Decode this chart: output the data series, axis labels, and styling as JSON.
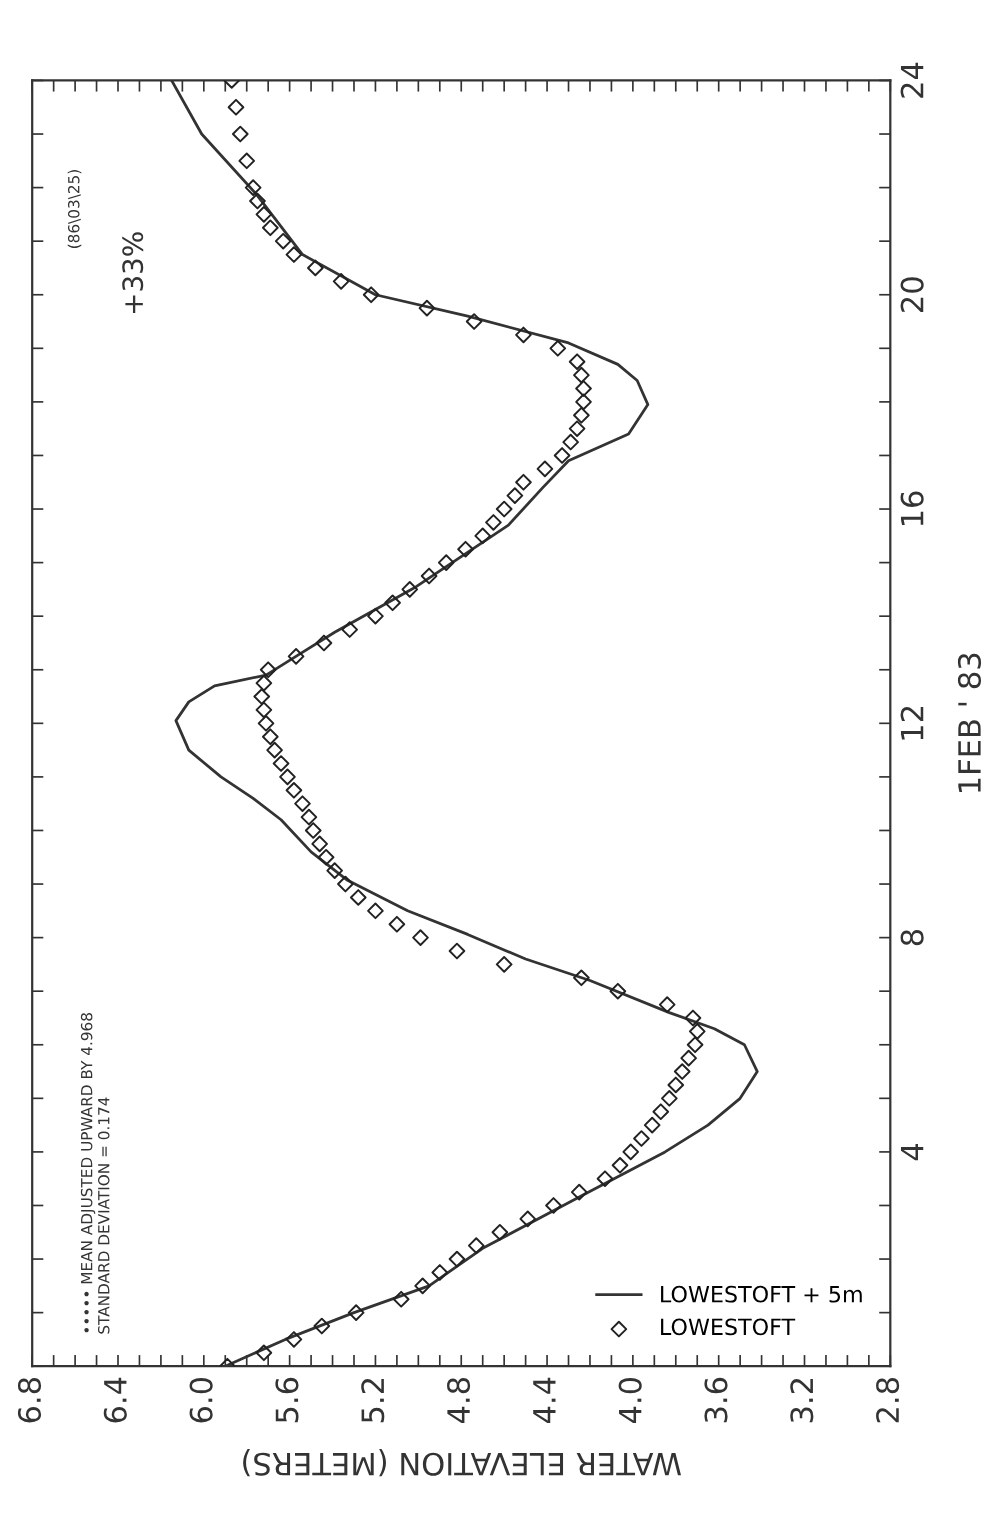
{
  "chart_data": {
    "type": "line",
    "ylabel": "1FEB ' 83",
    "xlabel": "WATER ELEVATION (METERS)",
    "ylim": [
      0,
      24
    ],
    "xlim": [
      6.8,
      2.8
    ],
    "yticks": [
      {
        "value": 0,
        "label": null
      },
      {
        "value": 1,
        "label": null
      },
      {
        "value": 2,
        "label": null
      },
      {
        "value": 3,
        "label": null
      },
      4,
      {
        "value": 5,
        "label": null
      },
      {
        "value": 6,
        "label": null
      },
      {
        "value": 7,
        "label": null
      },
      8,
      {
        "value": 9,
        "label": null
      },
      {
        "value": 10,
        "label": null
      },
      {
        "value": 11,
        "label": null
      },
      12,
      {
        "value": 13,
        "label": null
      },
      {
        "value": 14,
        "label": null
      },
      {
        "value": 15,
        "label": null
      },
      16,
      {
        "value": 17,
        "label": null
      },
      {
        "value": 18,
        "label": null
      },
      {
        "value": 19,
        "label": null
      },
      20,
      {
        "value": 21,
        "label": null
      },
      {
        "value": 22,
        "label": null
      },
      {
        "value": 23,
        "label": null
      },
      24
    ],
    "xticks": [
      2.8,
      {
        "value": 2.9,
        "label": null
      },
      {
        "value": 3.0,
        "label": null
      },
      {
        "value": 3.1,
        "label": null
      },
      3.2,
      {
        "value": 3.3,
        "label": null
      },
      {
        "value": 3.4,
        "label": null
      },
      {
        "value": 3.5,
        "label": null
      },
      3.6,
      {
        "value": 3.7,
        "label": null
      },
      {
        "value": 3.8,
        "label": null
      },
      {
        "value": 3.9,
        "label": null
      },
      {
        "value": 4.0,
        "label": "4.0"
      },
      {
        "value": 4.1,
        "label": null
      },
      {
        "value": 4.2,
        "label": null
      },
      {
        "value": 4.3,
        "label": null
      },
      4.4,
      {
        "value": 4.5,
        "label": null
      },
      {
        "value": 4.6,
        "label": null
      },
      {
        "value": 4.7,
        "label": null
      },
      4.8,
      {
        "value": 4.9,
        "label": null
      },
      {
        "value": 5.0,
        "label": null
      },
      {
        "value": 5.1,
        "label": null
      },
      5.2,
      {
        "value": 5.3,
        "label": null
      },
      {
        "value": 5.4,
        "label": null
      },
      {
        "value": 5.5,
        "label": null
      },
      5.6,
      {
        "value": 5.7,
        "label": null
      },
      {
        "value": 5.8,
        "label": null
      },
      {
        "value": 5.9,
        "label": null
      },
      {
        "value": 6.0,
        "label": "6.0"
      },
      {
        "value": 6.1,
        "label": null
      },
      {
        "value": 6.2,
        "label": null
      },
      {
        "value": 6.3,
        "label": null
      },
      6.4,
      {
        "value": 6.5,
        "label": null
      },
      {
        "value": 6.6,
        "label": null
      },
      {
        "value": 6.7,
        "label": null
      },
      6.8
    ],
    "grid": false,
    "legend": "bottom right",
    "annotations": [
      "+33%",
      "(86\\03\\25)",
      "••••• MEAN ADJUSTED UPWARD BY 4.968\nSTANDARD DEVIATION = 0.174"
    ],
    "series": [
      {
        "name": "LOWESTOFT + 5m",
        "color": "#333333",
        "marker": "none",
        "line_style": "solid",
        "values": [
          0,
          0.5,
          1.0,
          1.5,
          2.2,
          3.2,
          4.0,
          4.5,
          5.0,
          5.5,
          6.0,
          6.3,
          6.6,
          7.2,
          7.6,
          8.06,
          8.5,
          9.07,
          9.6,
          10.2,
          10.6,
          11.0,
          11.5,
          12.05,
          12.4,
          12.7,
          12.9,
          13.3,
          13.7,
          14.55,
          15.7,
          16.4,
          16.9,
          17.4,
          17.95,
          18.4,
          18.7,
          19.1,
          19.6,
          20.0,
          20.75,
          21.9,
          23.0,
          24.0
        ],
        "x": [
          5.9,
          5.62,
          5.3,
          4.95,
          4.7,
          4.23,
          3.85,
          3.65,
          3.5,
          3.42,
          3.48,
          3.62,
          3.83,
          4.2,
          4.5,
          4.77,
          5.05,
          5.33,
          5.5,
          5.64,
          5.77,
          5.92,
          6.07,
          6.13,
          6.07,
          5.95,
          5.71,
          5.55,
          5.39,
          5.01,
          4.58,
          4.42,
          4.3,
          4.02,
          3.93,
          3.98,
          4.07,
          4.3,
          4.77,
          5.2,
          5.54,
          5.76,
          6.01,
          6.15
        ]
      },
      {
        "name": "LOWESTOFT",
        "type": "scatter",
        "color": "#222222",
        "marker": "diamond",
        "values": [
          0,
          0.25,
          0.5,
          0.75,
          1.0,
          1.25,
          1.5,
          1.75,
          2.0,
          2.25,
          2.5,
          2.75,
          3.0,
          3.25,
          3.5,
          3.75,
          4.0,
          4.25,
          4.5,
          4.75,
          5.0,
          5.25,
          5.5,
          5.75,
          6.0,
          6.25,
          6.5,
          6.75,
          7.0,
          7.25,
          7.5,
          7.75,
          8.0,
          8.25,
          8.5,
          8.75,
          9.0,
          9.25,
          9.5,
          9.75,
          10.0,
          10.25,
          10.5,
          10.75,
          11.0,
          11.25,
          11.5,
          11.75,
          12.0,
          12.25,
          12.5,
          12.75,
          13.0,
          13.25,
          13.5,
          13.75,
          14.0,
          14.25,
          14.5,
          14.75,
          15.0,
          15.25,
          15.5,
          15.75,
          16.0,
          16.25,
          16.5,
          16.75,
          17.0,
          17.25,
          17.5,
          17.75,
          18.0,
          18.25,
          18.5,
          18.75,
          19.0,
          19.25,
          19.5,
          19.75,
          20.0,
          20.25,
          20.5,
          20.75,
          21.0,
          21.25,
          21.5,
          21.75,
          22.0,
          22.5,
          23.0,
          23.5,
          24.0
        ],
        "x": [
          5.89,
          5.72,
          5.58,
          5.45,
          5.29,
          5.08,
          4.98,
          4.9,
          4.82,
          4.73,
          4.62,
          4.49,
          4.37,
          4.25,
          4.13,
          4.06,
          4.01,
          3.96,
          3.91,
          3.87,
          3.83,
          3.8,
          3.77,
          3.74,
          3.71,
          3.7,
          3.72,
          3.84,
          4.07,
          4.24,
          4.6,
          4.82,
          4.99,
          5.1,
          5.2,
          5.28,
          5.34,
          5.39,
          5.43,
          5.46,
          5.49,
          5.51,
          5.54,
          5.58,
          5.61,
          5.64,
          5.67,
          5.69,
          5.71,
          5.72,
          5.73,
          5.72,
          5.7,
          5.57,
          5.44,
          5.32,
          5.2,
          5.12,
          5.04,
          4.95,
          4.87,
          4.78,
          4.7,
          4.65,
          4.6,
          4.55,
          4.51,
          4.41,
          4.33,
          4.29,
          4.26,
          4.24,
          4.23,
          4.23,
          4.24,
          4.26,
          4.35,
          4.51,
          4.74,
          4.96,
          5.22,
          5.36,
          5.48,
          5.58,
          5.63,
          5.69,
          5.72,
          5.75,
          5.77,
          5.8,
          5.83,
          5.85,
          5.87
        ]
      }
    ]
  }
}
